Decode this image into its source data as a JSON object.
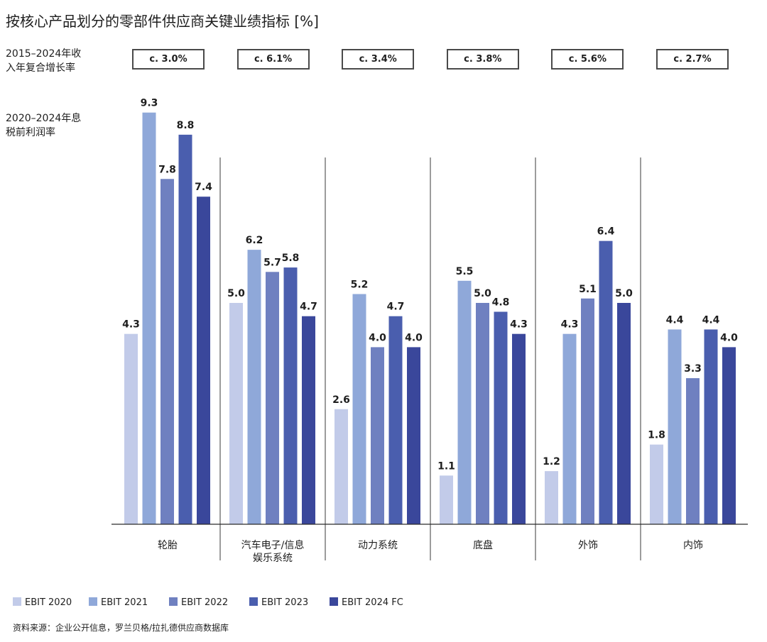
{
  "title": "按核心产品划分的零部件供应商关键业绩指标 [%]",
  "cagr_label": "2015–2024年收入年复合增长率",
  "ebit_margin_label": "2020–2024年息税前利润率",
  "source_label": "资料来源：",
  "source_text": "企业公开信息，罗兰贝格/拉扎德供应商数据库",
  "cagr_values": [
    "c. 3.0%",
    "c. 6.1%",
    "c. 3.4%",
    "c. 3.8%",
    "c. 5.6%",
    "c. 2.7%"
  ],
  "colors": [
    "#c2cbe9",
    "#8fa8d9",
    "#6f80c0",
    "#4a5eae",
    "#3a479b"
  ],
  "chart_data": {
    "type": "bar",
    "title": "按核心产品划分的零部件供应商关键业绩指标 [%]",
    "categories": [
      [
        "轮胎"
      ],
      [
        "汽车电子/信息",
        "娱乐系统"
      ],
      [
        "动力系统"
      ],
      [
        "底盘"
      ],
      [
        "外饰"
      ],
      [
        "内饰"
      ]
    ],
    "series": [
      {
        "name": "EBIT 2020",
        "values": [
          4.3,
          5.0,
          2.6,
          1.1,
          1.2,
          1.8
        ]
      },
      {
        "name": "EBIT 2021",
        "values": [
          9.3,
          6.2,
          5.2,
          5.5,
          4.3,
          4.4
        ]
      },
      {
        "name": "EBIT 2022",
        "values": [
          7.8,
          5.7,
          4.0,
          5.0,
          5.1,
          3.3
        ]
      },
      {
        "name": "EBIT 2023",
        "values": [
          8.8,
          5.8,
          4.7,
          4.8,
          6.4,
          4.4
        ]
      },
      {
        "name": "EBIT 2024 FC",
        "values": [
          7.4,
          4.7,
          4.0,
          4.3,
          5.0,
          4.0
        ]
      }
    ],
    "ylim": [
      0,
      10
    ],
    "legend_position": "bottom-left"
  }
}
